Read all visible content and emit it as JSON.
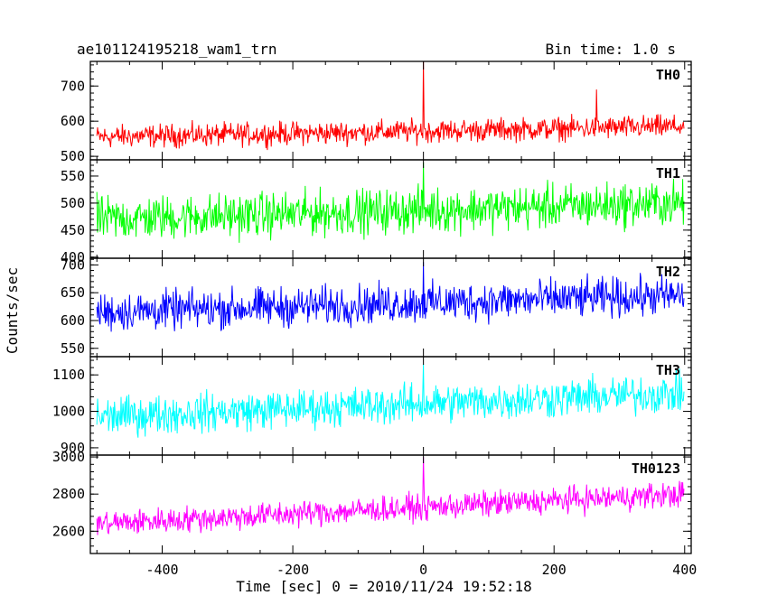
{
  "header": {
    "title": "ae101124195218_wam1_trn",
    "bin_time": "Bin time: 1.0 s"
  },
  "chart_data": {
    "type": "line",
    "title": "ae101124195218_wam1_trn",
    "xlabel": "Time [sec] 0 = 2010/11/24 19:52:18",
    "ylabel": "Counts/sec",
    "xlim": [
      -510,
      410
    ],
    "x_ticks": [
      -400,
      -200,
      0,
      200,
      400
    ],
    "grid": false,
    "x_step": 1,
    "panels": [
      {
        "name": "TH0",
        "color": "#ff0000",
        "ylim": [
          490,
          770
        ],
        "y_ticks": [
          500,
          600,
          700
        ],
        "baseline_start": 555,
        "baseline_end": 585,
        "noise_amplitude": 28,
        "spikes": [
          {
            "x": 0,
            "y": 770
          },
          {
            "x": 265,
            "y": 690
          }
        ]
      },
      {
        "name": "TH1",
        "color": "#00ff00",
        "ylim": [
          398,
          580
        ],
        "y_ticks": [
          400,
          450,
          500,
          550
        ],
        "baseline_start": 470,
        "baseline_end": 500,
        "noise_amplitude": 35,
        "spikes": [
          {
            "x": 0,
            "y": 575
          }
        ]
      },
      {
        "name": "TH2",
        "color": "#0000ff",
        "ylim": [
          535,
          712
        ],
        "y_ticks": [
          550,
          600,
          650,
          700
        ],
        "baseline_start": 615,
        "baseline_end": 645,
        "noise_amplitude": 30,
        "spikes": [
          {
            "x": 0,
            "y": 705
          }
        ]
      },
      {
        "name": "TH3",
        "color": "#00ffff",
        "ylim": [
          880,
          1150
        ],
        "y_ticks": [
          900,
          1000,
          1100
        ],
        "baseline_start": 985,
        "baseline_end": 1050,
        "noise_amplitude": 45,
        "spikes": [
          {
            "x": 0,
            "y": 1130
          }
        ]
      },
      {
        "name": "TH0123",
        "color": "#ff00ff",
        "ylim": [
          2480,
          3010
        ],
        "y_ticks": [
          2600,
          2800,
          3000
        ],
        "baseline_start": 2640,
        "baseline_end": 2800,
        "noise_amplitude": 60,
        "spikes": [
          {
            "x": 0,
            "y": 3000
          }
        ]
      }
    ]
  }
}
